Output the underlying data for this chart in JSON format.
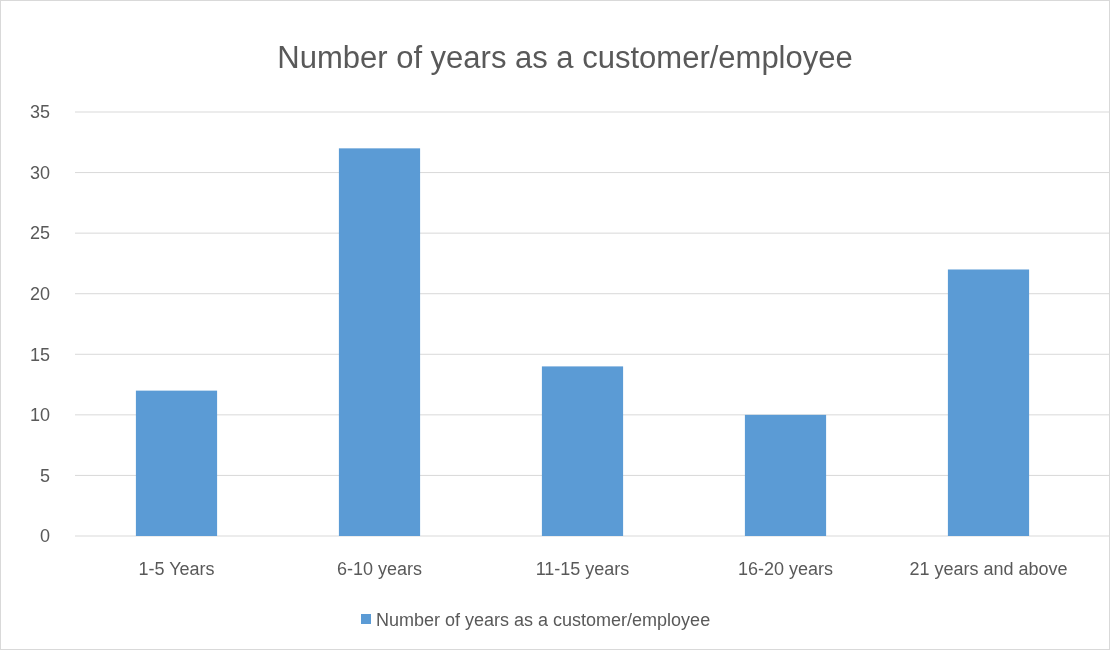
{
  "chart_data": {
    "type": "bar",
    "title": "Number of years as a customer/employee",
    "categories": [
      "1-5 Years",
      "6-10 years",
      "11-15 years",
      "16-20 years",
      "21 years and above"
    ],
    "series": [
      {
        "name": "Number of years as a customer/employee",
        "color": "#5b9bd5",
        "values": [
          12,
          32,
          14,
          10,
          22
        ]
      }
    ],
    "ylim": [
      0,
      35
    ],
    "yticks": [
      0,
      5,
      10,
      15,
      20,
      25,
      30,
      35
    ],
    "grid": "y",
    "legend": "bottom"
  }
}
